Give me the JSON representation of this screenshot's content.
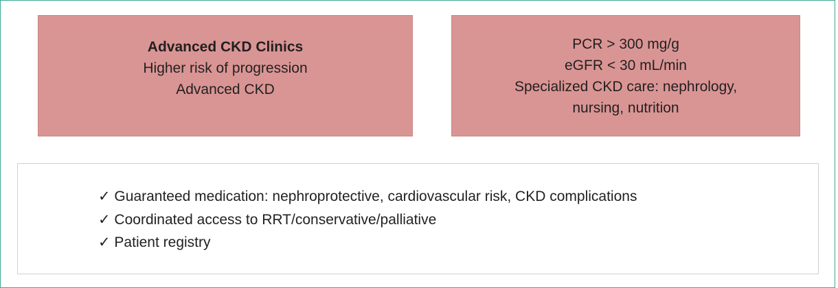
{
  "left_box": {
    "title": "Advanced CKD Clinics",
    "lines": [
      "Higher risk of progression",
      "Advanced CKD"
    ]
  },
  "right_box": {
    "lines": [
      "PCR > 300 mg/g",
      "eGFR < 30 mL/min",
      "Specialized CKD care: nephrology,",
      "nursing, nutrition"
    ]
  },
  "checklist": {
    "items": [
      "✓ Guaranteed medication: nephroprotective, cardiovascular risk, CKD complications",
      "✓ Coordinated access to RRT/conservative/palliative",
      "✓ Patient registry"
    ]
  }
}
